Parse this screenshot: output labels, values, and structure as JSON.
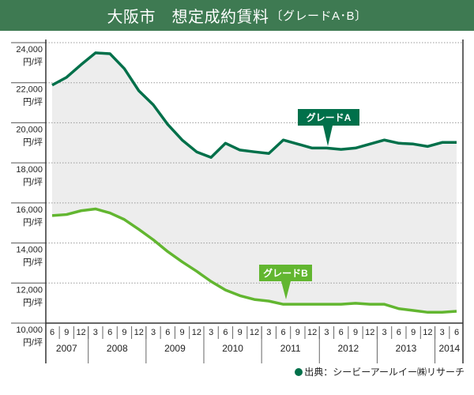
{
  "title": {
    "main": "大阪市　想定成約賃料",
    "sub": "〔グレードA･B〕"
  },
  "source": "出典：シービーアールイー㈱リサーチ",
  "colors": {
    "title_bar": "#3e7a52",
    "grade_a": "#00704a",
    "grade_b": "#62b630",
    "fill": "#ededed",
    "grid": "#999999"
  },
  "chart_data": {
    "type": "line",
    "title": "大阪市　想定成約賃料〔グレードA･B〕",
    "ylim": [
      10000,
      24000
    ],
    "yticks": [
      10000,
      12000,
      14000,
      16000,
      18000,
      20000,
      22000,
      24000
    ],
    "ytick_labels": [
      "10,000",
      "12,000",
      "14,000",
      "16,000",
      "18,000",
      "20,000",
      "22,000",
      "24,000"
    ],
    "yunit": "円/坪",
    "grid": true,
    "x_months": [
      "6",
      "9",
      "12",
      "3",
      "6",
      "9",
      "12",
      "3",
      "6",
      "9",
      "12",
      "3",
      "6",
      "9",
      "12",
      "3",
      "6",
      "9",
      "12",
      "3",
      "6",
      "9",
      "12",
      "3",
      "6",
      "9",
      "12",
      "3",
      "6"
    ],
    "x_years": [
      {
        "label": "2007",
        "count": 3
      },
      {
        "label": "2008",
        "count": 4
      },
      {
        "label": "2009",
        "count": 4
      },
      {
        "label": "2010",
        "count": 4
      },
      {
        "label": "2011",
        "count": 4
      },
      {
        "label": "2012",
        "count": 4
      },
      {
        "label": "2013",
        "count": 4
      },
      {
        "label": "2014",
        "count": 2
      }
    ],
    "series": [
      {
        "name": "グレードA",
        "values": [
          21880,
          22270,
          22900,
          23490,
          23450,
          22700,
          21600,
          20900,
          19920,
          19140,
          18550,
          18270,
          18980,
          18640,
          18550,
          18470,
          19140,
          18940,
          18740,
          18740,
          18670,
          18740,
          18940,
          19140,
          18980,
          18940,
          18820,
          19020,
          19020
        ]
      },
      {
        "name": "グレードB",
        "values": [
          15370,
          15420,
          15610,
          15700,
          15500,
          15170,
          14680,
          14160,
          13570,
          13060,
          12590,
          12080,
          11650,
          11370,
          11180,
          11100,
          10940,
          10940,
          10940,
          10940,
          10940,
          10990,
          10940,
          10940,
          10720,
          10630,
          10540,
          10540,
          10590
        ]
      }
    ]
  }
}
